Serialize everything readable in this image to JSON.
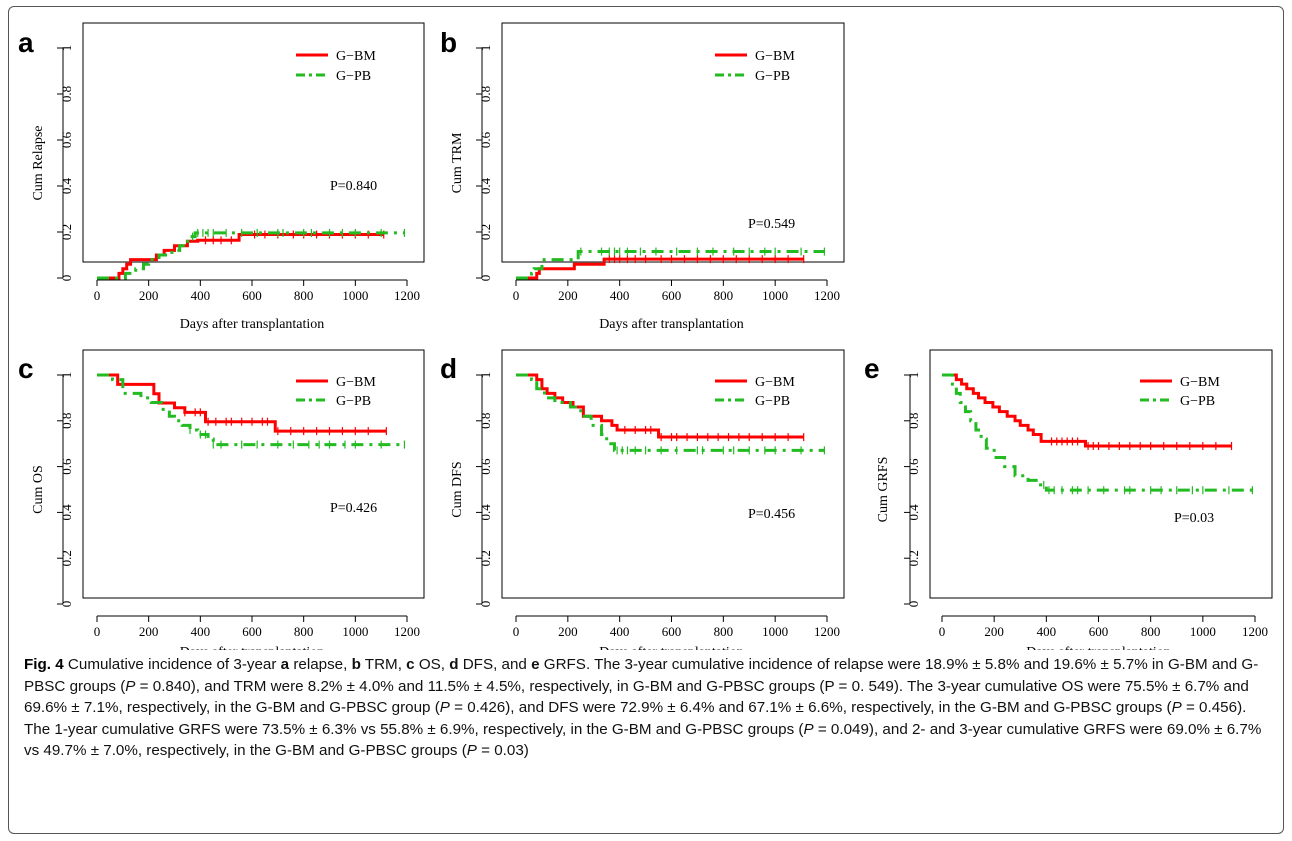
{
  "figure_label": "Fig. 4",
  "caption_segments": [
    {
      "t": "Cumulative incidence of 3-year "
    },
    {
      "t": "a",
      "b": true
    },
    {
      "t": " relapse, "
    },
    {
      "t": "b",
      "b": true
    },
    {
      "t": " TRM, "
    },
    {
      "t": "c",
      "b": true
    },
    {
      "t": " OS, "
    },
    {
      "t": "d",
      "b": true
    },
    {
      "t": " DFS, and "
    },
    {
      "t": "e",
      "b": true
    },
    {
      "t": " GRFS. The 3-year cumulative incidence of relapse were 18.9% ± 5.8% and 19.6% ± 5.7% in G-BM and G-PBSC groups ("
    },
    {
      "t": "P",
      "i": true
    },
    {
      "t": " = 0.840), and TRM were 8.2% ± 4.0% and 11.5% ± 4.5%, respectively, in G-BM and G-PBSC groups (P = 0. 549). The 3-year cumulative OS were 75.5% ± 6.7% and 69.6% ± 7.1%, respectively, in the G-BM and G-PBSC group ("
    },
    {
      "t": "P",
      "i": true
    },
    {
      "t": " = 0.426), and DFS were 72.9% ± 6.4% and 67.1% ± 6.6%, respectively, in the G-BM and G-PBSC groups ("
    },
    {
      "t": "P",
      "i": true
    },
    {
      "t": " = 0.456). The 1-year cumulative GRFS were 73.5% ± 6.3% vs 55.8% ± 6.9%, respectively, in the G-BM and G-PBSC groups ("
    },
    {
      "t": "P",
      "i": true
    },
    {
      "t": " = 0.049), and 2- and 3-year cumulative GRFS were 69.0% ± 6.7% vs 49.7% ± 7.0%, respectively, in the G-BM and G-PBSC groups ("
    },
    {
      "t": "P",
      "i": true
    },
    {
      "t": " = 0.03)"
    }
  ],
  "colors": {
    "gbm": "#ff0000",
    "gpb": "#22bb22"
  },
  "chart_data": [
    {
      "panel": "a",
      "type": "line",
      "ylabel": "Cum Relapse",
      "xlabel": "Days after transplantation",
      "pvalue": "P=0.840",
      "xlim": [
        0,
        1200
      ],
      "ylim": [
        0,
        1
      ],
      "xticks": [
        "0",
        "200",
        "400",
        "600",
        "800",
        "1000",
        "1200"
      ],
      "yticks": [
        "0",
        "0.2",
        "0.4",
        "0.6",
        "0.8",
        "1"
      ],
      "series": [
        {
          "name": "G−BM",
          "x": [
            0,
            85,
            100,
            115,
            130,
            230,
            260,
            300,
            350,
            390,
            550,
            1110
          ],
          "y": [
            0,
            0.02,
            0.04,
            0.06,
            0.08,
            0.1,
            0.12,
            0.14,
            0.16,
            0.164,
            0.189,
            0.189
          ],
          "censor": [
            420,
            450,
            480,
            520,
            610,
            650,
            700,
            760,
            800,
            850,
            900,
            950,
            1000,
            1050,
            1110
          ]
        },
        {
          "name": "G−PB",
          "x": [
            0,
            110,
            150,
            180,
            200,
            240,
            290,
            320,
            340,
            360,
            380,
            1190
          ],
          "y": [
            0,
            0.02,
            0.04,
            0.06,
            0.08,
            0.1,
            0.12,
            0.14,
            0.16,
            0.18,
            0.196,
            0.196
          ],
          "censor": [
            370,
            390,
            410,
            430,
            450,
            500,
            560,
            620,
            700,
            720,
            800,
            830,
            900,
            950,
            1000,
            1100,
            1190
          ]
        }
      ]
    },
    {
      "panel": "b",
      "type": "line",
      "ylabel": "Cum TRM",
      "xlabel": "Days after transplantation",
      "pvalue": "P=0.549",
      "xlim": [
        0,
        1200
      ],
      "ylim": [
        0,
        1
      ],
      "xticks": [
        "0",
        "200",
        "400",
        "600",
        "800",
        "1000",
        "1200"
      ],
      "yticks": [
        "0",
        "0.2",
        "0.4",
        "0.6",
        "0.8",
        "1"
      ],
      "series": [
        {
          "name": "G−BM",
          "x": [
            0,
            80,
            90,
            225,
            340,
            1110
          ],
          "y": [
            0,
            0.02,
            0.04,
            0.06,
            0.082,
            0.082
          ],
          "censor": [
            360,
            380,
            400,
            430,
            460,
            500,
            560,
            600,
            650,
            700,
            750,
            800,
            850,
            900,
            950,
            1000,
            1050,
            1110
          ]
        },
        {
          "name": "G−PB",
          "x": [
            0,
            60,
            70,
            100,
            240,
            1190
          ],
          "y": [
            0,
            0.02,
            0.04,
            0.08,
            0.115,
            0.115
          ],
          "censor": [
            250,
            330,
            360,
            380,
            400,
            430,
            480,
            540,
            620,
            700,
            760,
            840,
            900,
            960,
            1000,
            1100,
            1190
          ]
        }
      ]
    },
    {
      "panel": "c",
      "type": "line",
      "ylabel": "Cum OS",
      "xlabel": "Days after transplantation",
      "pvalue": "P=0.426",
      "xlim": [
        0,
        1200
      ],
      "ylim": [
        0,
        1
      ],
      "xticks": [
        "0",
        "200",
        "400",
        "600",
        "800",
        "1000",
        "1200"
      ],
      "yticks": [
        "0",
        "0.2",
        "0.4",
        "0.6",
        "0.8",
        "1"
      ],
      "series": [
        {
          "name": "G−BM",
          "x": [
            0,
            80,
            220,
            240,
            300,
            340,
            420,
            690,
            1120
          ],
          "y": [
            1,
            0.959,
            0.918,
            0.878,
            0.857,
            0.837,
            0.796,
            0.755,
            0.755
          ],
          "censor": [
            340,
            380,
            400,
            430,
            460,
            500,
            520,
            560,
            600,
            640,
            660,
            700,
            750,
            800,
            850,
            900,
            950,
            1000,
            1050,
            1120
          ]
        },
        {
          "name": "G−PB",
          "x": [
            0,
            60,
            100,
            170,
            210,
            250,
            280,
            300,
            330,
            360,
            390,
            430,
            450,
            1190
          ],
          "y": [
            1,
            0.98,
            0.92,
            0.9,
            0.88,
            0.85,
            0.82,
            0.8,
            0.78,
            0.76,
            0.74,
            0.72,
            0.696,
            0.696
          ],
          "censor": [
            360,
            400,
            420,
            450,
            480,
            560,
            620,
            700,
            760,
            820,
            860,
            900,
            960,
            1000,
            1100,
            1190
          ]
        }
      ]
    },
    {
      "panel": "d",
      "type": "line",
      "ylabel": "Cum DFS",
      "xlabel": "Days after transplantation",
      "pvalue": "P=0.456",
      "xlim": [
        0,
        1200
      ],
      "ylim": [
        0,
        1
      ],
      "xticks": [
        "0",
        "200",
        "400",
        "600",
        "800",
        "1000",
        "1200"
      ],
      "yticks": [
        "0",
        "0.2",
        "0.4",
        "0.6",
        "0.8",
        "1"
      ],
      "series": [
        {
          "name": "G−BM",
          "x": [
            0,
            80,
            100,
            120,
            150,
            180,
            220,
            260,
            330,
            370,
            390,
            550,
            1110
          ],
          "y": [
            1,
            0.98,
            0.94,
            0.92,
            0.9,
            0.88,
            0.86,
            0.82,
            0.8,
            0.78,
            0.76,
            0.729,
            0.729
          ],
          "censor": [
            420,
            460,
            500,
            520,
            560,
            600,
            620,
            660,
            700,
            740,
            780,
            820,
            860,
            900,
            950,
            1000,
            1050,
            1110
          ]
        },
        {
          "name": "G−PB",
          "x": [
            0,
            60,
            80,
            110,
            150,
            210,
            250,
            290,
            330,
            350,
            380,
            1190
          ],
          "y": [
            1,
            0.98,
            0.94,
            0.9,
            0.88,
            0.86,
            0.82,
            0.78,
            0.74,
            0.7,
            0.671,
            0.671
          ],
          "censor": [
            390,
            410,
            430,
            460,
            500,
            560,
            620,
            700,
            720,
            800,
            840,
            900,
            960,
            1000,
            1100,
            1190
          ]
        }
      ]
    },
    {
      "panel": "e",
      "type": "line",
      "ylabel": "Cum GRFS",
      "xlabel": "Days after transplantation",
      "pvalue": "P=0.03",
      "xlim": [
        0,
        1200
      ],
      "ylim": [
        0,
        1
      ],
      "xticks": [
        "0",
        "200",
        "400",
        "600",
        "800",
        "1000",
        "1200"
      ],
      "yticks": [
        "0",
        "0.2",
        "0.4",
        "0.6",
        "0.8",
        "1"
      ],
      "series": [
        {
          "name": "G−BM",
          "x": [
            0,
            55,
            75,
            95,
            120,
            140,
            165,
            195,
            220,
            250,
            280,
            300,
            330,
            350,
            380,
            550,
            1110
          ],
          "y": [
            1,
            0.98,
            0.96,
            0.94,
            0.92,
            0.9,
            0.88,
            0.86,
            0.84,
            0.82,
            0.8,
            0.78,
            0.76,
            0.74,
            0.71,
            0.69,
            0.69
          ],
          "censor": [
            420,
            440,
            460,
            480,
            500,
            520,
            560,
            580,
            600,
            640,
            680,
            720,
            760,
            800,
            850,
            900,
            950,
            1000,
            1050,
            1110
          ]
        },
        {
          "name": "G−PB",
          "x": [
            0,
            40,
            55,
            70,
            90,
            110,
            130,
            150,
            170,
            200,
            240,
            280,
            330,
            370,
            400,
            1190
          ],
          "y": [
            1,
            0.96,
            0.92,
            0.88,
            0.84,
            0.8,
            0.76,
            0.72,
            0.68,
            0.64,
            0.6,
            0.56,
            0.54,
            0.52,
            0.497,
            0.497
          ],
          "censor": [
            390,
            410,
            430,
            460,
            500,
            520,
            560,
            620,
            700,
            720,
            800,
            840,
            900,
            960,
            1000,
            1100,
            1190
          ]
        }
      ]
    }
  ]
}
